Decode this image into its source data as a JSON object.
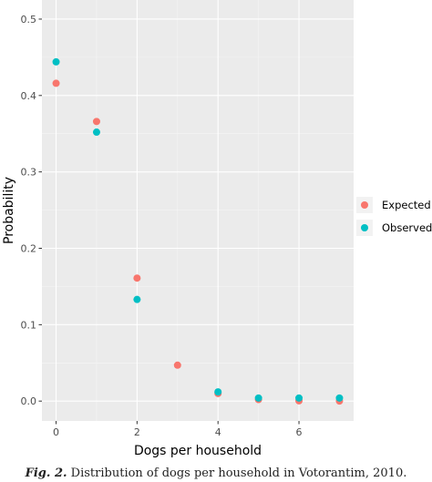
{
  "chart_data": {
    "type": "scatter",
    "title": "",
    "xlabel": "Dogs per household",
    "ylabel": "Probability",
    "xlim": [
      -0.35,
      7.35
    ],
    "ylim": [
      -0.026,
      0.525
    ],
    "x_ticks": [
      0,
      2,
      4,
      6
    ],
    "x_tick_labels": [
      "0",
      "2",
      "4",
      "6"
    ],
    "y_ticks": [
      0.0,
      0.1,
      0.2,
      0.3,
      0.4,
      0.5
    ],
    "y_tick_labels": [
      "0.0",
      "0.1",
      "0.2",
      "0.3",
      "0.4",
      "0.5"
    ],
    "grid": true,
    "background": "#ebebeb",
    "legend_position": "right",
    "series": [
      {
        "name": "Expected",
        "color": "#f8766d",
        "x": [
          0,
          1,
          2,
          3,
          4,
          5,
          6,
          7
        ],
        "values": [
          0.416,
          0.366,
          0.161,
          0.047,
          0.01,
          0.002,
          0.0004,
          0.0001
        ]
      },
      {
        "name": "Observed",
        "color": "#00bfc4",
        "x": [
          0,
          1,
          2,
          4,
          5,
          6,
          7
        ],
        "values": [
          0.444,
          0.352,
          0.133,
          0.012,
          0.004,
          0.004,
          0.004
        ]
      }
    ]
  },
  "caption": {
    "label": "Fig. 2.",
    "text": "Distribution of dogs per household in Votorantim, 2010."
  }
}
